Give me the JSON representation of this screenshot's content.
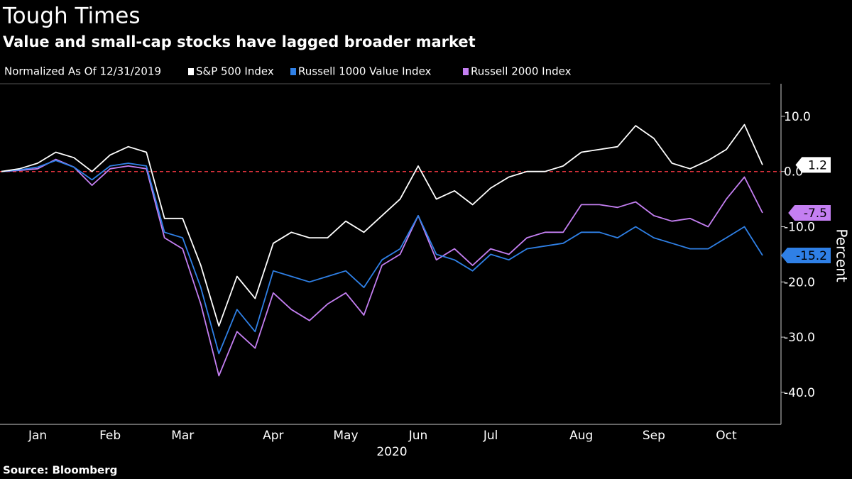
{
  "chart_data": {
    "type": "line",
    "title": "Tough Times",
    "subtitle": "Value and small-cap stocks have lagged broader market",
    "legend_title": "Normalized As Of 12/31/2019",
    "xlabel": "2020",
    "ylabel": "Percent",
    "source": "Source: Bloomberg",
    "categories": [
      null,
      null,
      "Jan",
      null,
      null,
      null,
      "Feb",
      null,
      null,
      null,
      "Mar",
      null,
      null,
      null,
      null,
      "Apr",
      null,
      null,
      null,
      "May",
      null,
      null,
      null,
      "Jun",
      null,
      null,
      null,
      "Jul",
      null,
      null,
      null,
      null,
      "Aug",
      null,
      null,
      null,
      "Sep",
      null,
      null,
      null,
      "Oct",
      null,
      null
    ],
    "series": [
      {
        "name": "S&P 500 Index",
        "color": "#ffffff",
        "values": [
          0,
          0.5,
          1.5,
          3.5,
          2.5,
          0.0,
          3.0,
          4.5,
          3.5,
          -8.5,
          -8.5,
          -17,
          -28,
          -19,
          -23,
          -13,
          -11,
          -12,
          -12,
          -9,
          -11,
          -8,
          -5,
          1,
          -5,
          -3.5,
          -6,
          -3,
          -1,
          0,
          0,
          1,
          3.5,
          4.0,
          4.5,
          8.3,
          6.0,
          1.5,
          0.5,
          2,
          4,
          8.5,
          1.2
        ]
      },
      {
        "name": "Russell 1000 Value Index",
        "color": "#2f80e6",
        "values": [
          0,
          0.3,
          0.8,
          2.0,
          0.8,
          -1.5,
          1.0,
          1.5,
          1.0,
          -11,
          -12,
          -21,
          -33,
          -25,
          -29,
          -18,
          -19,
          -20,
          -19,
          -18,
          -21,
          -16,
          -14,
          -8,
          -15,
          -16,
          -18,
          -15,
          -16,
          -14,
          -13.5,
          -13,
          -11,
          -11,
          -12,
          -10,
          -12,
          -13,
          -14,
          -14,
          -12,
          -10,
          -15.2
        ]
      },
      {
        "name": "Russell 2000 Index",
        "color": "#c47ff2",
        "values": [
          0,
          0.2,
          0.5,
          2.2,
          0.8,
          -2.5,
          0.5,
          1.0,
          0.5,
          -12,
          -14,
          -24,
          -37,
          -29,
          -32,
          -22,
          -25,
          -27,
          -24,
          -22,
          -26,
          -17,
          -15,
          -8,
          -16,
          -14,
          -17,
          -14,
          -15,
          -12,
          -11,
          -11,
          -6,
          -6,
          -6.5,
          -5.5,
          -8,
          -9,
          -8.5,
          -10,
          -5,
          -1,
          -7.5
        ]
      }
    ],
    "reference_line": 0,
    "ylim": [
      -45.8,
      15.9
    ],
    "yticks": [
      {
        "value": 10,
        "label": "10.0"
      },
      {
        "value": 0,
        "label": "0.0"
      },
      {
        "value": -10,
        "label": "-10.0"
      },
      {
        "value": -20,
        "label": "-20.0"
      },
      {
        "value": -30,
        "label": "-30.0"
      },
      {
        "value": -40,
        "label": "-40.0"
      }
    ]
  }
}
